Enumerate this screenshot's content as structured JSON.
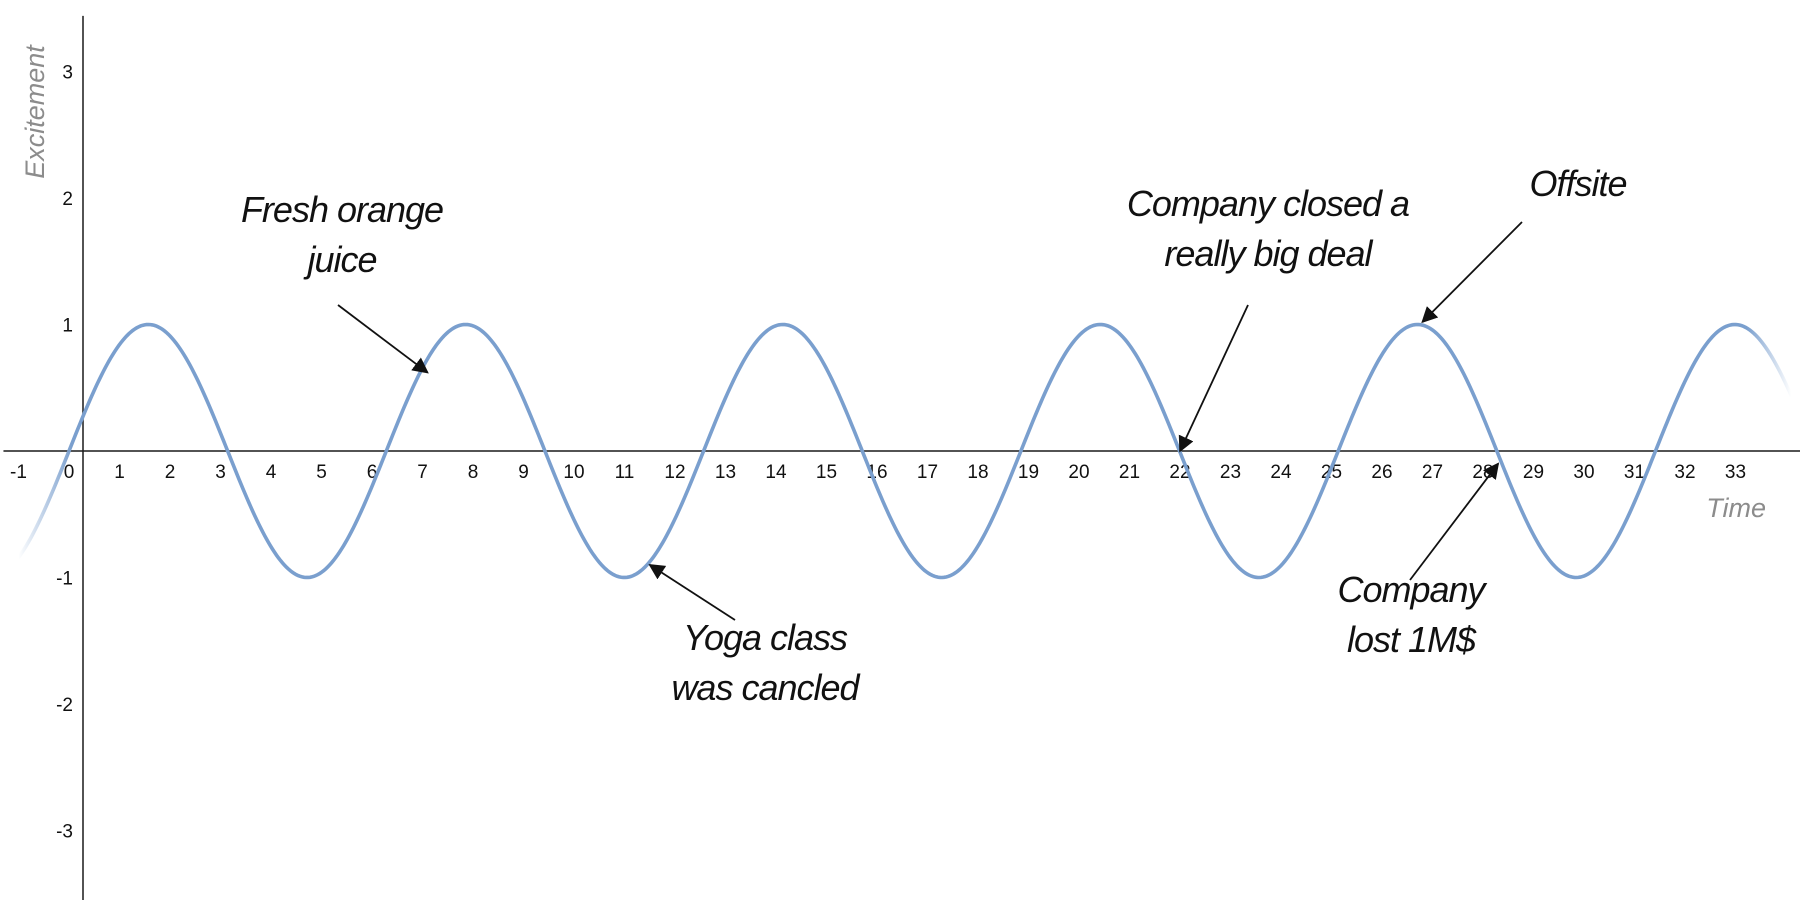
{
  "chart_data": {
    "type": "line",
    "title": "",
    "xlabel": "Time",
    "ylabel": "Excitement",
    "xlim": [
      -1.1,
      34.4
    ],
    "ylim": [
      -3.4,
      3.4
    ],
    "x_ticks": [
      -1,
      0,
      1,
      2,
      3,
      4,
      5,
      6,
      7,
      8,
      9,
      10,
      11,
      12,
      13,
      14,
      15,
      16,
      17,
      18,
      19,
      20,
      21,
      22,
      23,
      24,
      25,
      26,
      27,
      28,
      29,
      30,
      31,
      32,
      33
    ],
    "y_ticks": [
      3,
      2,
      1,
      -1,
      -2,
      -3
    ],
    "grid": false,
    "series": [
      {
        "function": "sin(x)",
        "x_range": [
          -1,
          34.1
        ],
        "color": "#7a9fce"
      }
    ],
    "annotations": [
      {
        "lines": [
          "Fresh orange",
          "juice"
        ],
        "point": [
          7.1,
          0.62
        ]
      },
      {
        "lines": [
          "Yoga class",
          "was cancled"
        ],
        "point": [
          11.5,
          -0.9
        ]
      },
      {
        "lines": [
          "Company closed a",
          "really big deal"
        ],
        "point": [
          22.0,
          0.0
        ]
      },
      {
        "lines": [
          "Offsite"
        ],
        "point": [
          26.8,
          1.02
        ]
      },
      {
        "lines": [
          "Company",
          "lost 1M$"
        ],
        "point": [
          28.3,
          -0.1
        ]
      }
    ]
  }
}
